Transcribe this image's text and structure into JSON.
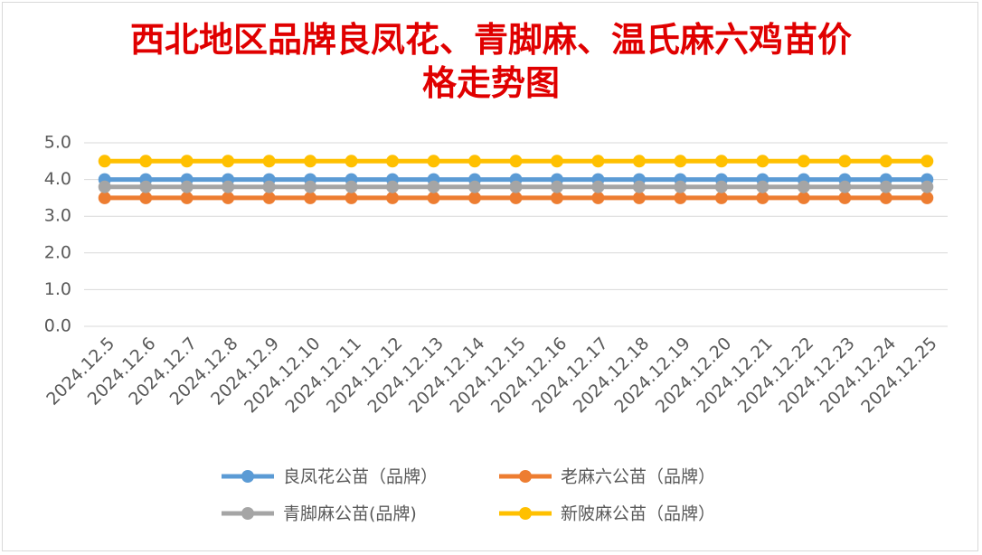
{
  "chart_data": {
    "type": "line",
    "title": "西北地区品牌良凤花、青脚麻、温氏麻六鸡苗价格走势图",
    "categories": [
      "2024.12.5",
      "2024.12.6",
      "2024.12.7",
      "2024.12.8",
      "2024.12.9",
      "2024.12.10",
      "2024.12.11",
      "2024.12.12",
      "2024.12.13",
      "2024.12.14",
      "2024.12.15",
      "2024.12.16",
      "2024.12.17",
      "2024.12.18",
      "2024.12.19",
      "2024.12.20",
      "2024.12.21",
      "2024.12.22",
      "2024.12.23",
      "2024.12.24",
      "2024.12.25"
    ],
    "series": [
      {
        "name": "良凤花公苗（品牌）",
        "color": "#5B9BD5",
        "values": [
          4.0,
          4.0,
          4.0,
          4.0,
          4.0,
          4.0,
          4.0,
          4.0,
          4.0,
          4.0,
          4.0,
          4.0,
          4.0,
          4.0,
          4.0,
          4.0,
          4.0,
          4.0,
          4.0,
          4.0,
          4.0
        ]
      },
      {
        "name": "老麻六公苗（品牌）",
        "color": "#ED7D31",
        "values": [
          3.5,
          3.5,
          3.5,
          3.5,
          3.5,
          3.5,
          3.5,
          3.5,
          3.5,
          3.5,
          3.5,
          3.5,
          3.5,
          3.5,
          3.5,
          3.5,
          3.5,
          3.5,
          3.5,
          3.5,
          3.5
        ]
      },
      {
        "name": "青脚麻公苗(品牌)",
        "color": "#A5A5A5",
        "values": [
          3.8,
          3.8,
          3.8,
          3.8,
          3.8,
          3.8,
          3.8,
          3.8,
          3.8,
          3.8,
          3.8,
          3.8,
          3.8,
          3.8,
          3.8,
          3.8,
          3.8,
          3.8,
          3.8,
          3.8,
          3.8
        ]
      },
      {
        "name": "新陂麻公苗（品牌）",
        "color": "#FFC000",
        "values": [
          4.5,
          4.5,
          4.5,
          4.5,
          4.5,
          4.5,
          4.5,
          4.5,
          4.5,
          4.5,
          4.5,
          4.5,
          4.5,
          4.5,
          4.5,
          4.5,
          4.5,
          4.5,
          4.5,
          4.5,
          4.5
        ]
      }
    ],
    "ylim": [
      0,
      5
    ],
    "yticks": [
      {
        "value": 0,
        "label": "0.0"
      },
      {
        "value": 1,
        "label": "1.0"
      },
      {
        "value": 2,
        "label": "2.0"
      },
      {
        "value": 3,
        "label": "3.0"
      },
      {
        "value": 4,
        "label": "4.0"
      },
      {
        "value": 5,
        "label": "5.0"
      }
    ],
    "grid": true,
    "legend": "bottom"
  }
}
